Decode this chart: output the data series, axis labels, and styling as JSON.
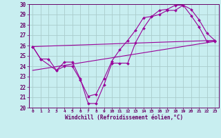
{
  "xlabel": "Windchill (Refroidissement éolien,°C)",
  "bg_color": "#c8eef0",
  "line_color": "#990099",
  "grid_color": "#aacccc",
  "xlim": [
    -0.5,
    23.5
  ],
  "ylim": [
    20,
    30
  ],
  "yticks": [
    20,
    21,
    22,
    23,
    24,
    25,
    26,
    27,
    28,
    29,
    30
  ],
  "xticks": [
    0,
    1,
    2,
    3,
    4,
    5,
    6,
    7,
    8,
    9,
    10,
    11,
    12,
    13,
    14,
    15,
    16,
    17,
    18,
    19,
    20,
    21,
    22,
    23
  ],
  "series": [
    {
      "x": [
        0,
        1,
        2,
        3,
        4,
        5,
        6,
        7,
        8,
        9,
        10,
        11,
        12,
        13,
        14,
        15,
        16,
        17,
        18,
        19,
        20,
        21,
        22,
        23
      ],
      "y": [
        25.9,
        24.7,
        24.7,
        23.6,
        24.4,
        24.4,
        22.8,
        20.4,
        20.4,
        22.2,
        24.3,
        24.3,
        24.3,
        26.3,
        27.7,
        28.8,
        29.0,
        29.4,
        29.4,
        29.9,
        28.9,
        27.8,
        26.4,
        26.4
      ],
      "marker": true
    },
    {
      "x": [
        0,
        1,
        3,
        4,
        5,
        6,
        7,
        8,
        9,
        10,
        11,
        12,
        13,
        14,
        15,
        16,
        17,
        18,
        19,
        20,
        21,
        22,
        23
      ],
      "y": [
        25.9,
        24.7,
        23.6,
        24.0,
        24.0,
        22.7,
        21.1,
        21.3,
        22.8,
        24.5,
        25.6,
        26.5,
        27.5,
        28.7,
        28.8,
        29.4,
        29.5,
        29.9,
        29.9,
        29.5,
        28.5,
        27.2,
        26.5
      ],
      "marker": true
    },
    {
      "x": [
        0,
        23
      ],
      "y": [
        23.6,
        26.4
      ],
      "marker": false
    },
    {
      "x": [
        0,
        23
      ],
      "y": [
        25.9,
        26.5
      ],
      "marker": false
    }
  ]
}
